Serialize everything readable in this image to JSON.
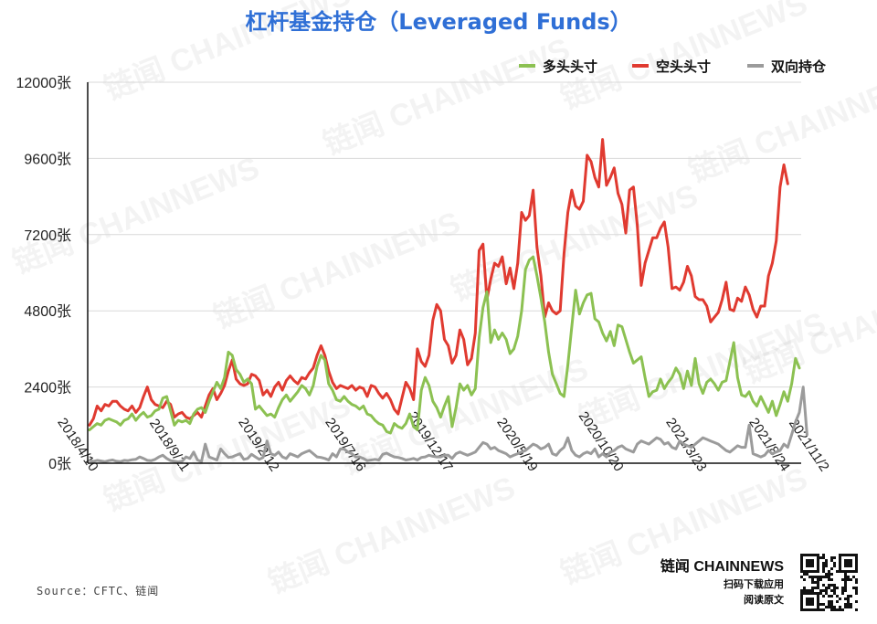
{
  "chart_data": {
    "type": "line",
    "title": "杠杆基金持仓（Leveraged Funds）",
    "xlabel": "",
    "ylabel": "",
    "ylim": [
      0,
      12000
    ],
    "y_ticks": [
      "0张",
      "2400张",
      "4800张",
      "7200张",
      "9600张",
      "12000张"
    ],
    "x_ticks": [
      "2018/4/10",
      "2018/9/11",
      "2019/2/12",
      "2019/7/16",
      "2019/12/17",
      "2020/5/19",
      "2020/10/20",
      "2021/3/23",
      "2021/8/24",
      "2021/11/2"
    ],
    "legend_position": "top-right",
    "grid": "horizontal",
    "series": [
      {
        "name": "多头头寸",
        "color": "#8cc152",
        "values": [
          1050,
          1150,
          1250,
          1200,
          1350,
          1400,
          1350,
          1300,
          1200,
          1350,
          1400,
          1550,
          1350,
          1500,
          1600,
          1450,
          1500,
          1650,
          1700,
          2050,
          2100,
          1650,
          1200,
          1350,
          1300,
          1350,
          1250,
          1550,
          1700,
          1750,
          1600,
          1950,
          2250,
          2550,
          2350,
          2700,
          3500,
          3400,
          2950,
          2800,
          2550,
          2650,
          2500,
          1700,
          1800,
          1650,
          1500,
          1550,
          1450,
          1750,
          2000,
          2150,
          1950,
          2100,
          2250,
          2450,
          2350,
          2150,
          2450,
          3050,
          3400,
          3250,
          2500,
          2300,
          2000,
          1950,
          2100,
          1950,
          1850,
          1800,
          1700,
          1800,
          1550,
          1500,
          1350,
          1250,
          1200,
          1000,
          950,
          1250,
          1150,
          1100,
          1250,
          1550,
          1150,
          1050,
          2300,
          2700,
          2450,
          1950,
          1750,
          1450,
          1800,
          2100,
          1150,
          1750,
          2500,
          2300,
          2450,
          2150,
          2350,
          3950,
          4900,
          5400,
          3800,
          4200,
          3900,
          4100,
          3900,
          3450,
          3600,
          4000,
          4800,
          6100,
          6400,
          6500,
          5900,
          5200,
          4450,
          3500,
          2800,
          2500,
          2200,
          2100,
          3100,
          4300,
          5450,
          4700,
          5050,
          5300,
          5350,
          4550,
          4450,
          4100,
          3850,
          4150,
          3700,
          4350,
          4300,
          3900,
          3500,
          3150,
          3250,
          3350,
          2700,
          2100,
          2250,
          2300,
          2650,
          2350,
          2550,
          2700,
          3000,
          2800,
          2350,
          2900,
          2450,
          3300,
          2500,
          2200,
          2550,
          2650,
          2500,
          2300,
          2550,
          2600,
          3200,
          3800,
          2700,
          2150,
          2100,
          2250,
          1950,
          1800,
          2100,
          1850,
          1600,
          1950,
          1500,
          1850,
          2250,
          1950,
          2500,
          3300,
          3000
        ]
      },
      {
        "name": "空头头寸",
        "color": "#e03a30",
        "values": [
          1200,
          1400,
          1800,
          1650,
          1850,
          1800,
          1950,
          1950,
          1800,
          1700,
          1650,
          1800,
          1600,
          1750,
          2100,
          2400,
          2000,
          1850,
          1800,
          1750,
          1950,
          1850,
          1450,
          1550,
          1600,
          1450,
          1400,
          1500,
          1600,
          1450,
          1800,
          2150,
          2350,
          2000,
          2200,
          2450,
          2900,
          3250,
          2650,
          2500,
          2450,
          2500,
          2800,
          2750,
          2600,
          2150,
          2300,
          2100,
          2400,
          2550,
          2300,
          2600,
          2750,
          2600,
          2500,
          2700,
          2650,
          2850,
          3000,
          3400,
          3700,
          3400,
          2900,
          2550,
          2350,
          2450,
          2400,
          2350,
          2450,
          2300,
          2400,
          2350,
          2100,
          2450,
          2400,
          2200,
          2050,
          2200,
          2000,
          1700,
          1550,
          2050,
          2550,
          2350,
          2000,
          3600,
          3200,
          3050,
          3400,
          4500,
          5000,
          4800,
          3900,
          3700,
          3150,
          3400,
          4200,
          3900,
          3100,
          3300,
          4100,
          6700,
          6900,
          5150,
          5800,
          6300,
          6200,
          6500,
          5650,
          6150,
          5500,
          6300,
          7900,
          7650,
          7800,
          8600,
          6800,
          5900,
          4600,
          5050,
          4800,
          4700,
          4800,
          6600,
          7900,
          8600,
          8100,
          8000,
          8250,
          9700,
          9500,
          9000,
          8700,
          10200,
          8750,
          9000,
          9300,
          8500,
          8150,
          7250,
          8600,
          8700,
          7500,
          5600,
          6300,
          6700,
          7100,
          7100,
          7400,
          7600,
          6800,
          5500,
          5550,
          5450,
          5700,
          6200,
          5900,
          5250,
          5150,
          5150,
          4950,
          4450,
          4600,
          4750,
          5150,
          5700,
          4850,
          4800,
          5200,
          5100,
          5550,
          5300,
          4850,
          4600,
          4950,
          4950,
          5900,
          6300,
          7000,
          8700,
          9400,
          8800
        ]
      },
      {
        "name": "双向持仓",
        "color": "#9b9b9b",
        "values": [
          80,
          60,
          90,
          70,
          50,
          80,
          100,
          60,
          50,
          90,
          80,
          110,
          120,
          200,
          150,
          90,
          80,
          120,
          200,
          250,
          150,
          80,
          60,
          40,
          60,
          200,
          150,
          350,
          100,
          50,
          600,
          200,
          150,
          100,
          450,
          300,
          180,
          200,
          250,
          300,
          120,
          150,
          280,
          200,
          120,
          180,
          700,
          300,
          250,
          350,
          200,
          150,
          300,
          250,
          200,
          300,
          350,
          400,
          300,
          200,
          180,
          150,
          100,
          300,
          200,
          450,
          450,
          350,
          300,
          200,
          200,
          150,
          80,
          100,
          120,
          100,
          280,
          320,
          250,
          200,
          180,
          150,
          100,
          120,
          150,
          100,
          180,
          200,
          250,
          220,
          200,
          200,
          250,
          250,
          150,
          300,
          350,
          300,
          250,
          300,
          350,
          500,
          650,
          600,
          450,
          500,
          400,
          350,
          300,
          200,
          250,
          300,
          350,
          400,
          500,
          600,
          550,
          450,
          500,
          600,
          300,
          250,
          400,
          500,
          800,
          400,
          250,
          200,
          300,
          350,
          300,
          450,
          200,
          300,
          200,
          350,
          400,
          500,
          550,
          450,
          400,
          350,
          600,
          700,
          650,
          600,
          700,
          800,
          750,
          600,
          650,
          500,
          450,
          700,
          600,
          550,
          500,
          600,
          700,
          800,
          750,
          700,
          650,
          600,
          500,
          400,
          350,
          450,
          550,
          500,
          500,
          1200,
          300,
          250,
          200,
          250,
          400,
          300,
          350,
          400,
          600,
          500,
          900,
          1300,
          1600,
          2400,
          900
        ]
      }
    ]
  },
  "watermark": {
    "text": "链闻 CHAINNEWS"
  },
  "footer": {
    "source": "Source：CFTC、链闻",
    "brand": "链闻 CHAINNEWS",
    "brand_sub_1": "扫码下载应用",
    "brand_sub_2": "阅读原文"
  },
  "colors": {
    "title": "#2f6fd6",
    "axis": "#111111",
    "grid": "#d9d9d9"
  },
  "icons": {
    "qr": "qr-code-icon"
  }
}
